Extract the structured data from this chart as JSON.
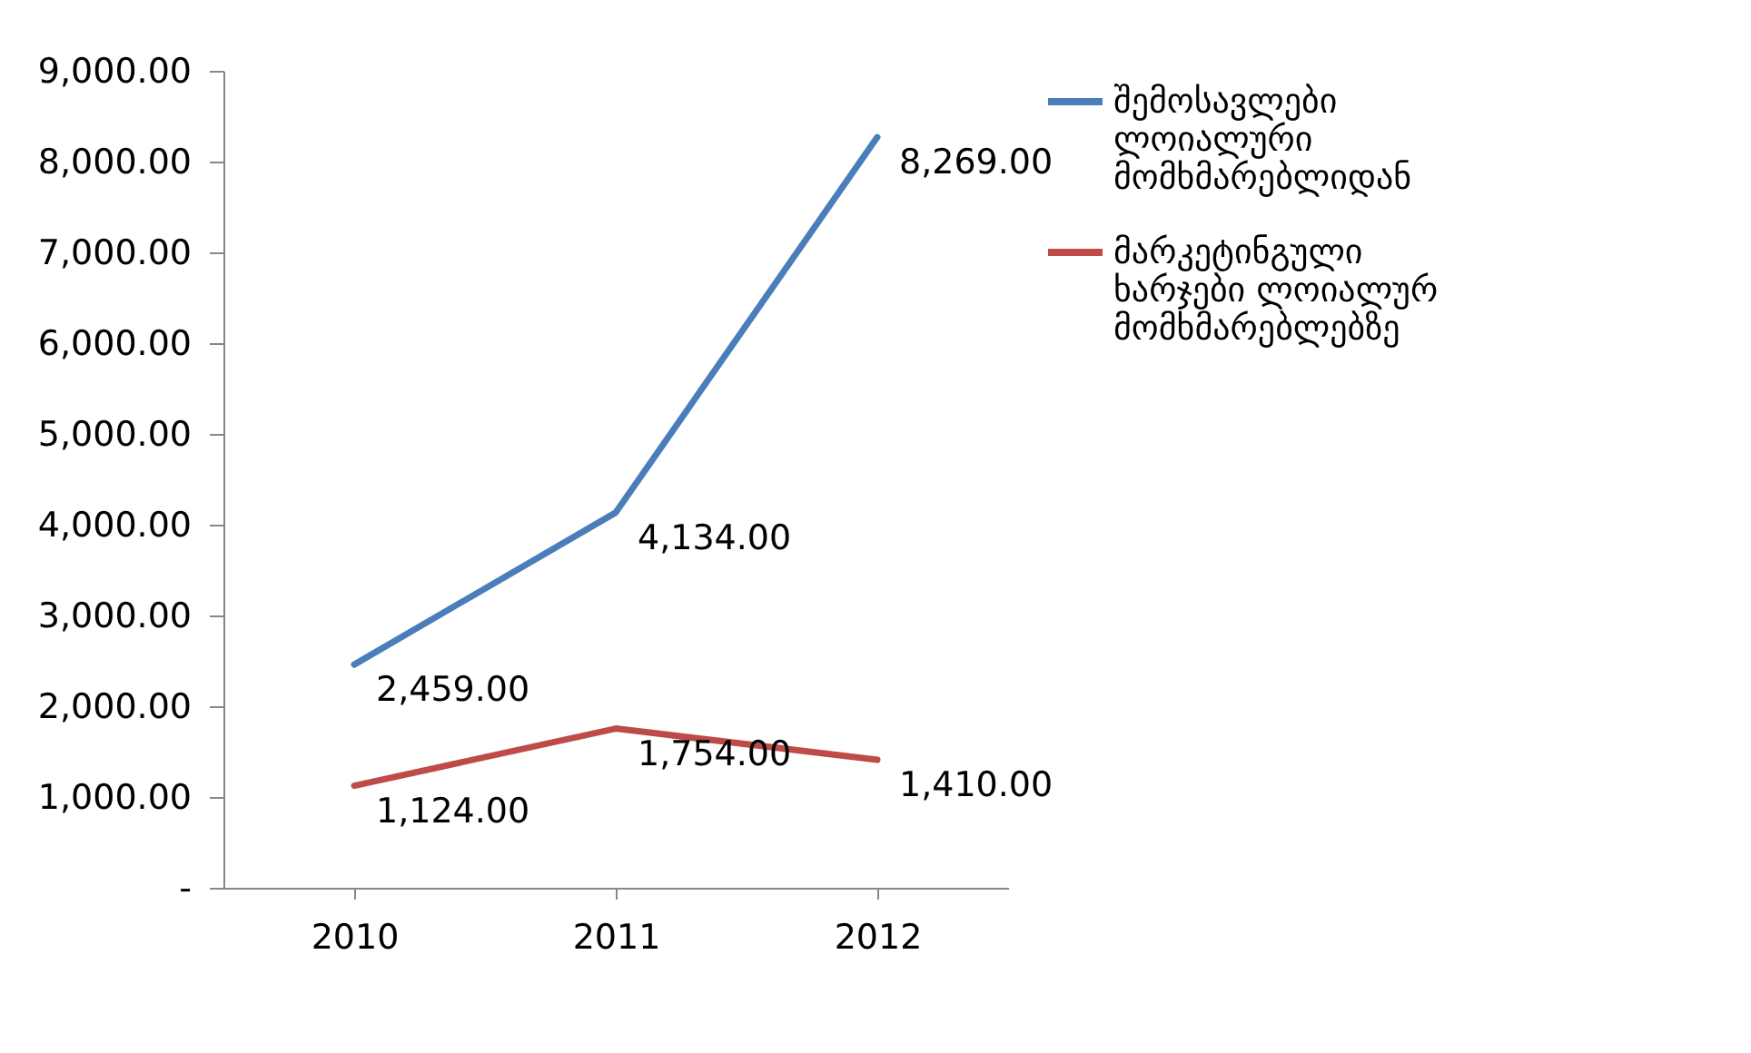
{
  "chart_data": {
    "type": "line",
    "categories": [
      "2010",
      "2011",
      "2012"
    ],
    "series": [
      {
        "name": "შემოსავლები ლოიალური მომხმარებლიდან",
        "color": "#4a7ebb",
        "values": [
          2459,
          4134,
          8269
        ],
        "value_labels": [
          "2,459.00",
          "4,134.00",
          "8,269.00"
        ]
      },
      {
        "name": "მარკეტინგული ხარჯები ლოიალურ მომხმარებლებზე",
        "color": "#be4b48",
        "values": [
          1124,
          1754,
          1410
        ],
        "value_labels": [
          "1,124.00",
          "1,754.00",
          "1,410.00"
        ]
      }
    ],
    "ylim": [
      0,
      9000
    ],
    "yticks": [
      {
        "value": 0,
        "label": "-"
      },
      {
        "value": 1000,
        "label": "1,000.00"
      },
      {
        "value": 2000,
        "label": "2,000.00"
      },
      {
        "value": 3000,
        "label": "3,000.00"
      },
      {
        "value": 4000,
        "label": "4,000.00"
      },
      {
        "value": 5000,
        "label": "5,000.00"
      },
      {
        "value": 6000,
        "label": "6,000.00"
      },
      {
        "value": 7000,
        "label": "7,000.00"
      },
      {
        "value": 8000,
        "label": "8,000.00"
      },
      {
        "value": 9000,
        "label": "9,000.00"
      }
    ],
    "legend": "right",
    "marker": "none",
    "line_style": "solid",
    "grid": false
  }
}
